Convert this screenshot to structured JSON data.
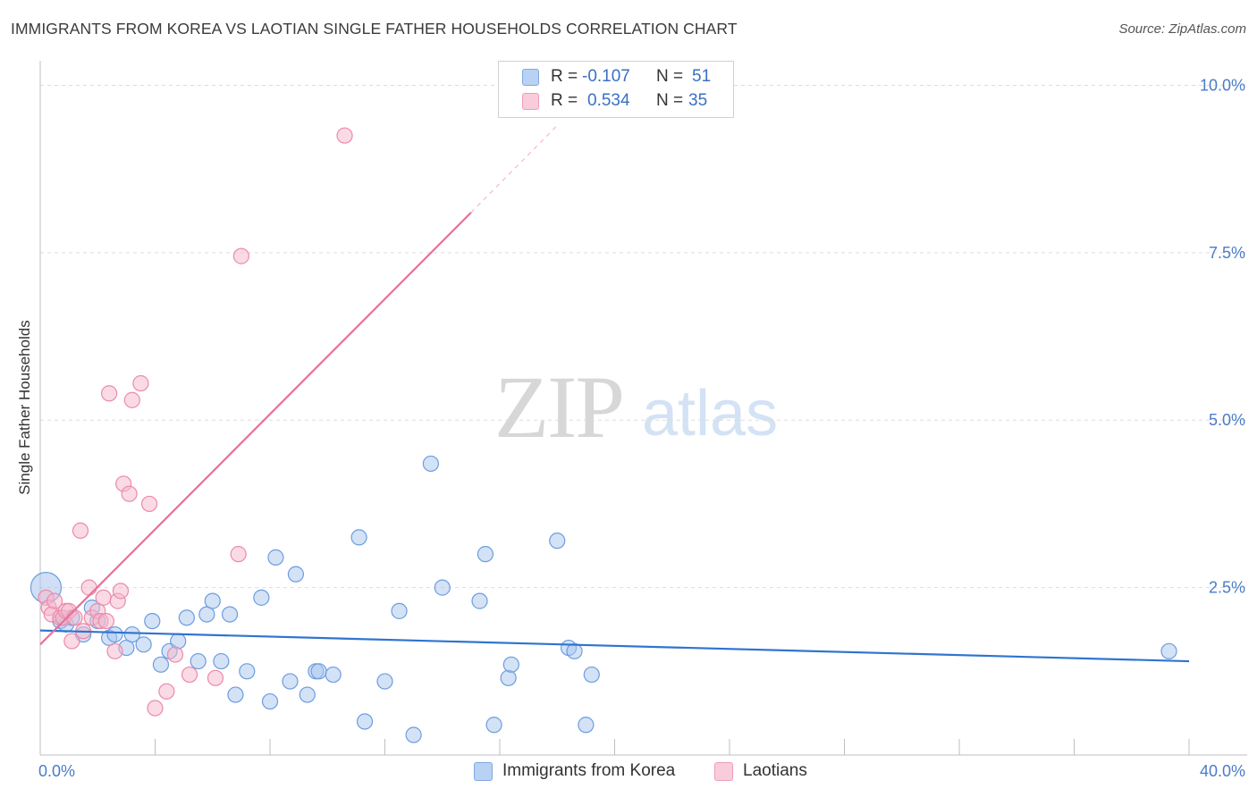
{
  "title": "IMMIGRANTS FROM KOREA VS LAOTIAN SINGLE FATHER HOUSEHOLDS CORRELATION CHART",
  "source": "Source: ZipAtlas.com",
  "watermark": {
    "zip": "ZIP",
    "atlas": "atlas"
  },
  "colors": {
    "blue_fill": "#a9c5ee",
    "blue_stroke": "#6b9de0",
    "blue_line": "#2f74d0",
    "pink_fill": "#f6b8cc",
    "pink_stroke": "#eb8aaa",
    "pink_line": "#e8709a",
    "tick_text": "#4a7cc7",
    "grid": "#dcdcdc"
  },
  "legend": {
    "rows": [
      {
        "r_label": "R =",
        "r_value": "-0.107",
        "n_label": "N =",
        "n_value": "51",
        "series": "Immigrants from Korea"
      },
      {
        "r_label": "R =",
        "r_value": "0.534",
        "n_label": "N =",
        "n_value": "35",
        "series": "Laotians"
      }
    ]
  },
  "bottom_legend": {
    "korea": "Immigrants from Korea",
    "laotians": "Laotians"
  },
  "chart_data": {
    "type": "scatter",
    "ylabel": "Single Father Households",
    "xlim": [
      0,
      40
    ],
    "ylim": [
      0,
      10.5
    ],
    "x_tick_labels": [
      {
        "x": 0,
        "label": "0.0%"
      },
      {
        "x": 40,
        "label": "40.0%"
      }
    ],
    "y_tick_labels": [
      {
        "y": 2.5,
        "label": "2.5%"
      },
      {
        "y": 5.0,
        "label": "5.0%"
      },
      {
        "y": 7.5,
        "label": "7.5%"
      },
      {
        "y": 10.0,
        "label": "10.0%"
      }
    ],
    "x_minor_ticks": [
      0,
      4,
      8,
      12,
      16,
      20,
      24,
      28,
      32,
      36,
      40
    ],
    "grid": true,
    "legend_position": "top-center",
    "series": [
      {
        "name": "Immigrants from Korea",
        "color": "#6b9de0",
        "points": [
          [
            0.2,
            2.5
          ],
          [
            0.7,
            2.0
          ],
          [
            0.9,
            1.95
          ],
          [
            1.1,
            2.05
          ],
          [
            1.5,
            1.8
          ],
          [
            1.8,
            2.2
          ],
          [
            2.0,
            2.0
          ],
          [
            2.4,
            1.75
          ],
          [
            2.6,
            1.8
          ],
          [
            3.0,
            1.6
          ],
          [
            3.2,
            1.8
          ],
          [
            3.6,
            1.65
          ],
          [
            3.9,
            2.0
          ],
          [
            4.2,
            1.35
          ],
          [
            4.5,
            1.55
          ],
          [
            4.8,
            1.7
          ],
          [
            5.1,
            2.05
          ],
          [
            5.5,
            1.4
          ],
          [
            5.8,
            2.1
          ],
          [
            6.0,
            2.3
          ],
          [
            6.3,
            1.4
          ],
          [
            6.6,
            2.1
          ],
          [
            6.8,
            0.9
          ],
          [
            7.2,
            1.25
          ],
          [
            7.7,
            2.35
          ],
          [
            8.0,
            0.8
          ],
          [
            8.2,
            2.95
          ],
          [
            8.7,
            1.1
          ],
          [
            8.9,
            2.7
          ],
          [
            9.3,
            0.9
          ],
          [
            9.6,
            1.25
          ],
          [
            9.7,
            1.25
          ],
          [
            10.2,
            1.2
          ],
          [
            11.1,
            3.25
          ],
          [
            11.3,
            0.5
          ],
          [
            12.0,
            1.1
          ],
          [
            12.5,
            2.15
          ],
          [
            13.0,
            0.3
          ],
          [
            13.6,
            4.35
          ],
          [
            14.0,
            2.5
          ],
          [
            15.3,
            2.3
          ],
          [
            15.5,
            3.0
          ],
          [
            15.8,
            0.45
          ],
          [
            16.3,
            1.15
          ],
          [
            16.4,
            1.35
          ],
          [
            18.0,
            3.2
          ],
          [
            18.4,
            1.6
          ],
          [
            18.6,
            1.55
          ],
          [
            19.0,
            0.45
          ],
          [
            19.2,
            1.2
          ],
          [
            39.3,
            1.55
          ]
        ],
        "trend": {
          "x0": 0,
          "y0": 1.86,
          "x1": 40,
          "y1": 1.4
        }
      },
      {
        "name": "Laotians",
        "color": "#eb8aaa",
        "points": [
          [
            0.2,
            2.35
          ],
          [
            0.3,
            2.2
          ],
          [
            0.4,
            2.1
          ],
          [
            0.5,
            2.3
          ],
          [
            0.7,
            2.05
          ],
          [
            0.8,
            2.05
          ],
          [
            0.9,
            2.15
          ],
          [
            1.0,
            2.15
          ],
          [
            1.1,
            1.7
          ],
          [
            1.2,
            2.05
          ],
          [
            1.4,
            3.35
          ],
          [
            1.5,
            1.85
          ],
          [
            1.7,
            2.5
          ],
          [
            1.8,
            2.05
          ],
          [
            2.0,
            2.15
          ],
          [
            2.1,
            2.0
          ],
          [
            2.2,
            2.35
          ],
          [
            2.3,
            2.0
          ],
          [
            2.4,
            5.4
          ],
          [
            2.6,
            1.55
          ],
          [
            2.7,
            2.3
          ],
          [
            2.8,
            2.45
          ],
          [
            2.9,
            4.05
          ],
          [
            3.1,
            3.9
          ],
          [
            3.2,
            5.3
          ],
          [
            3.5,
            5.55
          ],
          [
            3.8,
            3.75
          ],
          [
            4.0,
            0.7
          ],
          [
            4.4,
            0.95
          ],
          [
            4.7,
            1.5
          ],
          [
            5.2,
            1.2
          ],
          [
            6.1,
            1.15
          ],
          [
            6.9,
            3.0
          ],
          [
            7.0,
            7.45
          ],
          [
            10.6,
            9.25
          ]
        ],
        "trend": {
          "x0": 0,
          "y0": 1.65,
          "x1": 15,
          "y1": 8.1,
          "dash_to_x": 18.0,
          "dash_to_y": 9.4
        }
      }
    ]
  }
}
